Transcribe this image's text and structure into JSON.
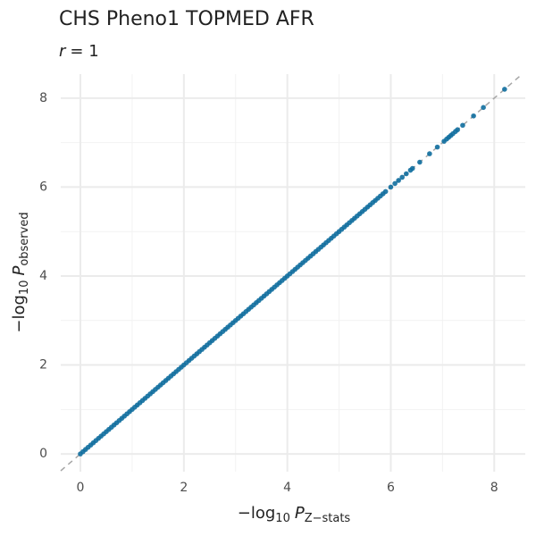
{
  "chart_data": {
    "type": "scatter",
    "title": "CHS Pheno1 TOPMED AFR",
    "subtitle": {
      "variable": "r",
      "text": "= 1"
    },
    "xlabel": {
      "prefix": "−log",
      "base": "10",
      "symbol": "P",
      "subscript": "Z−stats"
    },
    "ylabel": {
      "prefix": "−log",
      "base": "10",
      "symbol": "P",
      "subscript": "observed"
    },
    "xlim": [
      -0.38,
      8.6
    ],
    "ylim": [
      -0.4,
      8.54
    ],
    "xticks": [
      0,
      2,
      4,
      6,
      8
    ],
    "yticks": [
      0,
      2,
      4,
      6,
      8
    ],
    "minor_xticks": [
      1,
      3,
      5,
      7
    ],
    "minor_yticks": [
      1,
      3,
      5,
      7
    ],
    "grid": true,
    "reference_line": true,
    "series": [
      {
        "color": "#0f6e9e",
        "x": [
          0,
          0.05,
          0.1,
          0.15,
          0.2,
          0.25,
          0.3,
          0.35,
          0.4,
          0.45,
          0.5,
          0.55,
          0.6,
          0.65,
          0.7,
          0.75,
          0.8,
          0.85,
          0.9,
          0.95,
          1,
          1.05,
          1.1,
          1.15,
          1.2,
          1.25,
          1.3,
          1.35,
          1.4,
          1.45,
          1.5,
          1.55,
          1.6,
          1.65,
          1.7,
          1.75,
          1.8,
          1.85,
          1.9,
          1.95,
          2,
          2.05,
          2.1,
          2.15,
          2.2,
          2.25,
          2.3,
          2.35,
          2.4,
          2.45,
          2.5,
          2.55,
          2.6,
          2.65,
          2.7,
          2.75,
          2.8,
          2.85,
          2.9,
          2.95,
          3,
          3.05,
          3.1,
          3.15,
          3.2,
          3.25,
          3.3,
          3.35,
          3.4,
          3.45,
          3.5,
          3.55,
          3.6,
          3.65,
          3.7,
          3.75,
          3.8,
          3.85,
          3.9,
          3.95,
          4,
          4.05,
          4.1,
          4.15,
          4.2,
          4.25,
          4.3,
          4.35,
          4.4,
          4.45,
          4.5,
          4.55,
          4.6,
          4.65,
          4.7,
          4.75,
          4.8,
          4.85,
          4.9,
          4.95,
          5,
          5.05,
          5.1,
          5.15,
          5.2,
          5.25,
          5.3,
          5.35,
          5.4,
          5.45,
          5.5,
          5.55,
          5.6,
          5.65,
          5.7,
          5.75,
          5.8,
          5.85,
          5.9,
          6,
          6.08,
          6.15,
          6.22,
          6.3,
          6.38,
          6.42,
          6.56,
          6.75,
          6.9,
          7.03,
          7.08,
          7.12,
          7.16,
          7.2,
          7.25,
          7.29,
          7.39,
          7.6,
          7.79,
          8.2
        ],
        "values": [
          0,
          0.05,
          0.1,
          0.15,
          0.2,
          0.25,
          0.3,
          0.35,
          0.4,
          0.45,
          0.5,
          0.55,
          0.6,
          0.65,
          0.7,
          0.75,
          0.8,
          0.85,
          0.9,
          0.95,
          1,
          1.05,
          1.1,
          1.15,
          1.2,
          1.25,
          1.3,
          1.35,
          1.4,
          1.45,
          1.5,
          1.55,
          1.6,
          1.65,
          1.7,
          1.75,
          1.8,
          1.85,
          1.9,
          1.95,
          2,
          2.05,
          2.1,
          2.15,
          2.2,
          2.25,
          2.3,
          2.35,
          2.4,
          2.45,
          2.5,
          2.55,
          2.6,
          2.65,
          2.7,
          2.75,
          2.8,
          2.85,
          2.9,
          2.95,
          3,
          3.05,
          3.1,
          3.15,
          3.2,
          3.25,
          3.3,
          3.35,
          3.4,
          3.45,
          3.5,
          3.55,
          3.6,
          3.65,
          3.7,
          3.75,
          3.8,
          3.85,
          3.9,
          3.95,
          4,
          4.05,
          4.1,
          4.15,
          4.2,
          4.25,
          4.3,
          4.35,
          4.4,
          4.45,
          4.5,
          4.55,
          4.6,
          4.65,
          4.7,
          4.75,
          4.8,
          4.85,
          4.9,
          4.95,
          5,
          5.05,
          5.1,
          5.15,
          5.2,
          5.25,
          5.3,
          5.35,
          5.4,
          5.45,
          5.5,
          5.55,
          5.6,
          5.65,
          5.7,
          5.75,
          5.8,
          5.85,
          5.9,
          6,
          6.08,
          6.15,
          6.22,
          6.3,
          6.38,
          6.42,
          6.56,
          6.75,
          6.9,
          7.03,
          7.08,
          7.12,
          7.16,
          7.2,
          7.25,
          7.29,
          7.39,
          7.6,
          7.79,
          8.2
        ]
      }
    ]
  }
}
